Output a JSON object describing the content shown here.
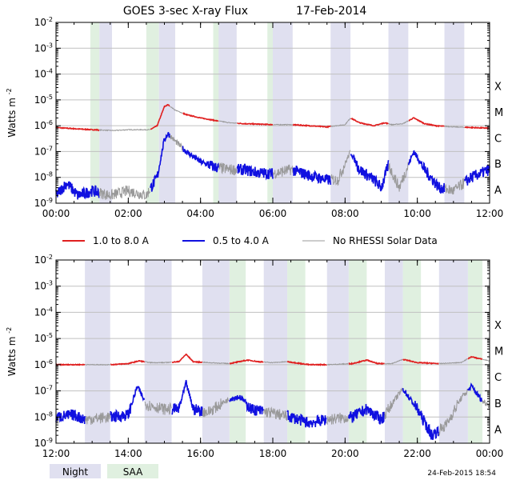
{
  "title": "GOES 3-sec X-ray Flux",
  "date": "17-Feb-2014",
  "ylabel": "Watts m",
  "ylabel_exp": "-2",
  "ytick_exponents": [
    "-2",
    "-3",
    "-4",
    "-5",
    "-6",
    "-7",
    "-8",
    "-9"
  ],
  "class_labels": [
    {
      "label": "X",
      "exp": -4
    },
    {
      "label": "M",
      "exp": -5
    },
    {
      "label": "C",
      "exp": -6
    },
    {
      "label": "B",
      "exp": -7
    },
    {
      "label": "A",
      "exp": -8
    }
  ],
  "legend": [
    {
      "label": "1.0 to 8.0 A",
      "color": "#e02020"
    },
    {
      "label": "0.5 to 4.0 A",
      "color": "#1010e0"
    },
    {
      "label": "No RHESSI Solar Data",
      "color": "#999999"
    }
  ],
  "shade_legend": [
    {
      "label": "Night",
      "color": "#e0e0f0"
    },
    {
      "label": "SAA",
      "color": "#e0f0e0"
    }
  ],
  "timestamp": "24-Feb-2015 18:54",
  "colors": {
    "long": "#e02020",
    "short": "#1010e0",
    "nodata": "#999999",
    "night": "#e0e0f0",
    "saa": "#e0f0e0",
    "grid": "#c0c0c0"
  },
  "chart_data": [
    {
      "type": "line",
      "xlabel": "",
      "ylabel": "Watts m^-2",
      "yscale": "log",
      "xlim": [
        0,
        12
      ],
      "ylim": [
        1e-09,
        0.01
      ],
      "xticks": [
        "00:00",
        "02:00",
        "04:00",
        "06:00",
        "08:00",
        "10:00",
        "12:00"
      ],
      "night": [
        [
          1.2,
          1.55
        ],
        [
          2.85,
          3.3
        ],
        [
          4.5,
          5.0
        ],
        [
          6.0,
          6.55
        ],
        [
          7.6,
          8.15
        ],
        [
          9.2,
          9.75
        ],
        [
          10.75,
          11.3
        ]
      ],
      "saa": [
        [
          0.95,
          1.2
        ],
        [
          2.5,
          2.85
        ],
        [
          4.35,
          4.7
        ],
        [
          5.85,
          6.25
        ]
      ],
      "nodata": [
        [
          1.2,
          2.6
        ],
        [
          3.15,
          3.5
        ],
        [
          4.5,
          5.0
        ],
        [
          6.0,
          6.55
        ],
        [
          7.6,
          8.15
        ],
        [
          9.2,
          9.75
        ],
        [
          10.75,
          11.3
        ]
      ],
      "series": [
        {
          "name": "1.0 to 8.0 A",
          "points": [
            [
              0,
              8.5e-07
            ],
            [
              0.6,
              7.5e-07
            ],
            [
              1.0,
              7e-07
            ],
            [
              1.6,
              6.5e-07
            ],
            [
              2.0,
              7e-07
            ],
            [
              2.6,
              7e-07
            ],
            [
              2.8,
              1e-06
            ],
            [
              3.0,
              5.5e-06
            ],
            [
              3.1,
              6.5e-06
            ],
            [
              3.3,
              4e-06
            ],
            [
              3.6,
              2.7e-06
            ],
            [
              4.0,
              2e-06
            ],
            [
              4.4,
              1.6e-06
            ],
            [
              4.8,
              1.3e-06
            ],
            [
              5.2,
              1.2e-06
            ],
            [
              5.6,
              1.15e-06
            ],
            [
              6.0,
              1.1e-06
            ],
            [
              6.5,
              1.1e-06
            ],
            [
              7.0,
              1e-06
            ],
            [
              7.5,
              9e-07
            ],
            [
              8.0,
              1.1e-06
            ],
            [
              8.15,
              2e-06
            ],
            [
              8.4,
              1.3e-06
            ],
            [
              8.8,
              1e-06
            ],
            [
              9.1,
              1.3e-06
            ],
            [
              9.3,
              1.1e-06
            ],
            [
              9.6,
              1.2e-06
            ],
            [
              9.9,
              2e-06
            ],
            [
              10.2,
              1.2e-06
            ],
            [
              10.5,
              1e-06
            ],
            [
              11.0,
              9e-07
            ],
            [
              11.5,
              8.5e-07
            ],
            [
              12.0,
              8e-07
            ]
          ]
        },
        {
          "name": "0.5 to 4.0 A",
          "points": [
            [
              0,
              2e-09
            ],
            [
              0.3,
              6e-09
            ],
            [
              0.6,
              2e-09
            ],
            [
              1.0,
              3e-09
            ],
            [
              1.5,
              2e-09
            ],
            [
              2.0,
              3e-09
            ],
            [
              2.5,
              2e-09
            ],
            [
              2.8,
              1e-08
            ],
            [
              3.0,
              3e-07
            ],
            [
              3.1,
              5e-07
            ],
            [
              3.3,
              2.5e-07
            ],
            [
              3.6,
              1e-07
            ],
            [
              4.0,
              4e-08
            ],
            [
              4.4,
              2.5e-08
            ],
            [
              4.8,
              2e-08
            ],
            [
              5.2,
              2e-08
            ],
            [
              5.6,
              1.5e-08
            ],
            [
              6.0,
              1.4e-08
            ],
            [
              6.5,
              2e-08
            ],
            [
              7.0,
              1.2e-08
            ],
            [
              7.5,
              8e-09
            ],
            [
              7.8,
              8e-09
            ],
            [
              8.15,
              1e-07
            ],
            [
              8.4,
              2e-08
            ],
            [
              8.8,
              8e-09
            ],
            [
              9.0,
              4e-09
            ],
            [
              9.2,
              3e-08
            ],
            [
              9.5,
              4e-09
            ],
            [
              9.7,
              2e-08
            ],
            [
              9.9,
              1e-07
            ],
            [
              10.2,
              2e-08
            ],
            [
              10.6,
              4e-09
            ],
            [
              11.0,
              3e-09
            ],
            [
              11.5,
              1e-08
            ],
            [
              12.0,
              2e-08
            ]
          ]
        }
      ]
    },
    {
      "type": "line",
      "xlabel": "",
      "ylabel": "Watts m^-2",
      "yscale": "log",
      "xlim": [
        12,
        24
      ],
      "ylim": [
        1e-09,
        0.01
      ],
      "xticks": [
        "12:00",
        "14:00",
        "16:00",
        "18:00",
        "20:00",
        "22:00",
        "00:00"
      ],
      "night": [
        [
          12.8,
          13.5
        ],
        [
          14.45,
          15.2
        ],
        [
          16.05,
          16.8
        ],
        [
          17.75,
          18.4
        ],
        [
          19.5,
          20.1
        ],
        [
          21.1,
          21.6
        ],
        [
          22.6,
          23.4
        ]
      ],
      "saa": [
        [
          16.8,
          17.25
        ],
        [
          18.4,
          18.9
        ],
        [
          20.1,
          20.6
        ],
        [
          21.6,
          22.1
        ],
        [
          23.4,
          23.8
        ]
      ],
      "nodata": [
        [
          12.8,
          13.5
        ],
        [
          14.45,
          15.2
        ],
        [
          16.05,
          16.8
        ],
        [
          17.75,
          18.4
        ],
        [
          19.5,
          20.1
        ],
        [
          21.1,
          21.6
        ],
        [
          22.6,
          23.4
        ],
        [
          23.8,
          24.0
        ]
      ],
      "series": [
        {
          "name": "1.0 to 8.0 A",
          "points": [
            [
              12,
              1e-06
            ],
            [
              12.8,
              1e-06
            ],
            [
              13.5,
              1e-06
            ],
            [
              14.0,
              1.1e-06
            ],
            [
              14.3,
              1.4e-06
            ],
            [
              14.6,
              1.2e-06
            ],
            [
              15.0,
              1.2e-06
            ],
            [
              15.4,
              1.3e-06
            ],
            [
              15.6,
              2.5e-06
            ],
            [
              15.8,
              1.3e-06
            ],
            [
              16.2,
              1.2e-06
            ],
            [
              16.8,
              1.1e-06
            ],
            [
              17.3,
              1.5e-06
            ],
            [
              17.6,
              1.3e-06
            ],
            [
              18.0,
              1.2e-06
            ],
            [
              18.4,
              1.3e-06
            ],
            [
              19.0,
              1e-06
            ],
            [
              19.5,
              1e-06
            ],
            [
              20.2,
              1.1e-06
            ],
            [
              20.6,
              1.5e-06
            ],
            [
              20.9,
              1.1e-06
            ],
            [
              21.3,
              1.1e-06
            ],
            [
              21.6,
              1.6e-06
            ],
            [
              22.0,
              1.2e-06
            ],
            [
              22.6,
              1.1e-06
            ],
            [
              23.2,
              1.2e-06
            ],
            [
              23.5,
              2e-06
            ],
            [
              23.8,
              1.6e-06
            ],
            [
              24.0,
              1.4e-06
            ]
          ]
        },
        {
          "name": "0.5 to 4.0 A",
          "points": [
            [
              12,
              1e-08
            ],
            [
              12.5,
              1.2e-08
            ],
            [
              12.8,
              8e-09
            ],
            [
              13.5,
              1e-08
            ],
            [
              14.0,
              1.2e-08
            ],
            [
              14.25,
              1.5e-07
            ],
            [
              14.5,
              3e-08
            ],
            [
              15.0,
              2e-08
            ],
            [
              15.4,
              2e-08
            ],
            [
              15.6,
              2e-07
            ],
            [
              15.8,
              2e-08
            ],
            [
              16.2,
              1.5e-08
            ],
            [
              16.8,
              5e-08
            ],
            [
              17.1,
              6e-08
            ],
            [
              17.4,
              2e-08
            ],
            [
              18.0,
              1.4e-08
            ],
            [
              18.5,
              1e-08
            ],
            [
              19.0,
              6e-09
            ],
            [
              19.5,
              8e-09
            ],
            [
              20.2,
              1e-08
            ],
            [
              20.6,
              2e-08
            ],
            [
              21.0,
              8e-09
            ],
            [
              21.4,
              5e-08
            ],
            [
              21.6,
              1.2e-07
            ],
            [
              22.0,
              2e-08
            ],
            [
              22.4,
              2e-09
            ],
            [
              22.8,
              5e-09
            ],
            [
              23.2,
              5e-08
            ],
            [
              23.5,
              1.5e-07
            ],
            [
              23.8,
              4e-08
            ],
            [
              24.0,
              3e-08
            ]
          ]
        }
      ]
    }
  ]
}
